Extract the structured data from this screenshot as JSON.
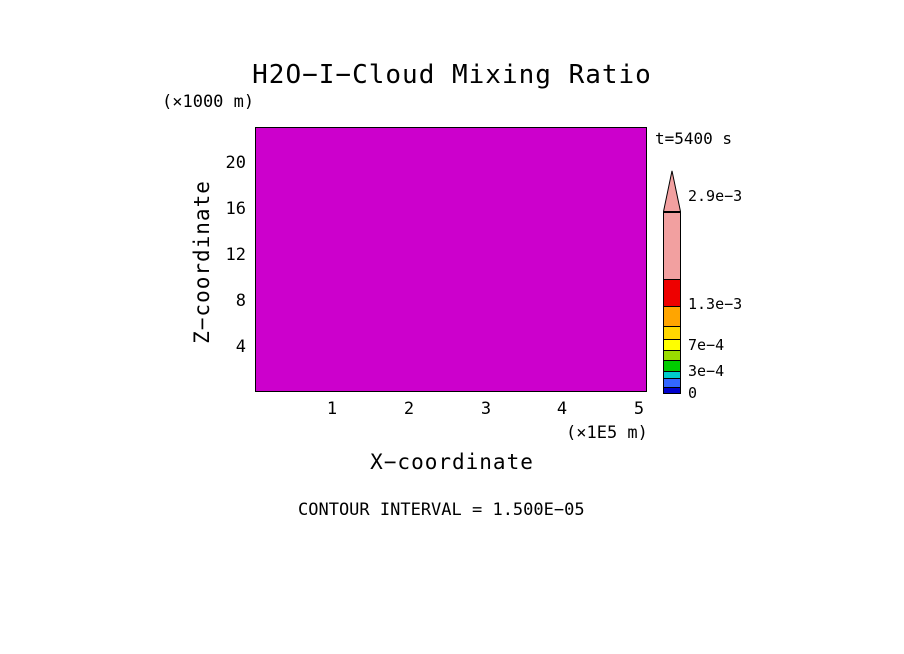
{
  "title": "H2O−I−Cloud Mixing Ratio",
  "time_label": "t=5400 s",
  "y_axis": {
    "unit": "(×1000 m)",
    "label": "Z−coordinate",
    "ticks": [
      "20",
      "16",
      "12",
      "8",
      "4"
    ]
  },
  "x_axis": {
    "label": "X−coordinate",
    "unit": "(×1E5 m)",
    "ticks": [
      "1",
      "2",
      "3",
      "4",
      "5"
    ]
  },
  "footer": "CONTOUR INTERVAL = 1.500E−05",
  "plot": {
    "fill_color": "#CC00CC",
    "border_color": "#000000"
  },
  "colorbar": {
    "tip_color": "#F2A0A0",
    "segments": [
      {
        "color": "#F2A0A0",
        "height": 66
      },
      {
        "color": "#EE0000",
        "height": 26
      },
      {
        "color": "#FFA500",
        "height": 19
      },
      {
        "color": "#FFD700",
        "height": 12
      },
      {
        "color": "#FFFF00",
        "height": 10
      },
      {
        "color": "#99DD00",
        "height": 9
      },
      {
        "color": "#00CC00",
        "height": 10
      },
      {
        "color": "#00CCCC",
        "height": 6
      },
      {
        "color": "#3366FF",
        "height": 8
      },
      {
        "color": "#0000CC",
        "height": 8
      },
      {
        "color": "#5A005A",
        "height": 6
      }
    ],
    "labels": [
      {
        "text": "2.9e−3"
      },
      {
        "text": "1.3e−3"
      },
      {
        "text": "7e−4"
      },
      {
        "text": "3e−4"
      },
      {
        "text": "0"
      }
    ]
  },
  "chart_data": {
    "type": "heatmap",
    "title": "H2O-I-Cloud Mixing Ratio",
    "time": "t=5400 s",
    "xlabel": "X-coordinate (×1E5 m)",
    "ylabel": "Z-coordinate (×1000 m)",
    "x_ticks": [
      1,
      2,
      3,
      4,
      5
    ],
    "y_ticks": [
      4,
      8,
      12,
      16,
      20
    ],
    "x_range_est": [
      0,
      5.1
    ],
    "y_range_est": [
      0,
      23
    ],
    "contour_interval": "1.500E-05",
    "field": "uniform single-color fill across entire domain (magenta #CC00CC); no contour lines visible",
    "colorbar_tick_labels_bottom_to_top": [
      "0",
      "3e-4",
      "7e-4",
      "1.3e-3",
      "2.9e-3"
    ],
    "colorbar_colors_bottom_to_top": [
      "#5A005A",
      "#0000CC",
      "#3366FF",
      "#00CCCC",
      "#00CC00",
      "#99DD00",
      "#FFFF00",
      "#FFD700",
      "#FFA500",
      "#EE0000",
      "#F2A0A0"
    ],
    "legend_position": "right",
    "grid": false
  }
}
